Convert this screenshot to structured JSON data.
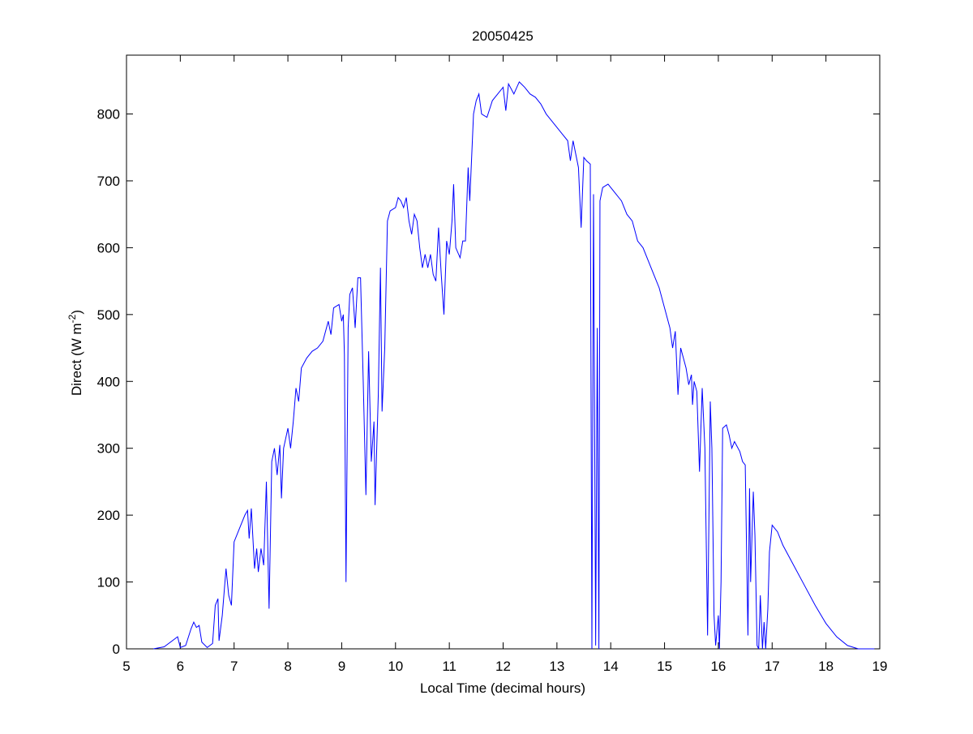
{
  "chart_data": {
    "type": "line",
    "title": "20050425",
    "xlabel": "Local Time (decimal hours)",
    "ylabel": {
      "text": "Direct (W m",
      "superscript": "-2",
      "suffix": ")"
    },
    "xlim": [
      5,
      19
    ],
    "xticks": [
      5,
      6,
      7,
      8,
      9,
      10,
      11,
      12,
      13,
      14,
      15,
      16,
      17,
      18,
      19
    ],
    "ylim": [
      0,
      888
    ],
    "yticks": [
      0,
      100,
      200,
      300,
      400,
      500,
      600,
      700,
      800
    ],
    "x": [
      5.5,
      5.7,
      5.9,
      5.95,
      6.0,
      6.1,
      6.2,
      6.25,
      6.3,
      6.35,
      6.4,
      6.5,
      6.6,
      6.65,
      6.7,
      6.72,
      6.78,
      6.85,
      6.9,
      6.95,
      7.0,
      7.1,
      7.2,
      7.25,
      7.28,
      7.32,
      7.38,
      7.42,
      7.45,
      7.5,
      7.55,
      7.6,
      7.65,
      7.7,
      7.75,
      7.8,
      7.85,
      7.88,
      7.92,
      8.0,
      8.05,
      8.1,
      8.15,
      8.2,
      8.25,
      8.35,
      8.45,
      8.55,
      8.65,
      8.75,
      8.8,
      8.85,
      8.95,
      9.0,
      9.03,
      9.05,
      9.08,
      9.12,
      9.15,
      9.2,
      9.25,
      9.3,
      9.35,
      9.4,
      9.45,
      9.5,
      9.55,
      9.6,
      9.62,
      9.68,
      9.72,
      9.75,
      9.8,
      9.85,
      9.9,
      10.0,
      10.05,
      10.1,
      10.15,
      10.2,
      10.25,
      10.3,
      10.35,
      10.4,
      10.45,
      10.5,
      10.55,
      10.6,
      10.65,
      10.7,
      10.75,
      10.8,
      10.85,
      10.9,
      10.95,
      11.0,
      11.05,
      11.08,
      11.12,
      11.2,
      11.25,
      11.3,
      11.35,
      11.38,
      11.45,
      11.5,
      11.55,
      11.6,
      11.7,
      11.8,
      11.9,
      12.0,
      12.05,
      12.1,
      12.2,
      12.3,
      12.4,
      12.5,
      12.6,
      12.7,
      12.8,
      12.9,
      13.0,
      13.1,
      13.2,
      13.25,
      13.3,
      13.4,
      13.45,
      13.5,
      13.55,
      13.62,
      13.65,
      13.68,
      13.72,
      13.75,
      13.78,
      13.8,
      13.85,
      13.95,
      14.1,
      14.2,
      14.3,
      14.4,
      14.5,
      14.6,
      14.7,
      14.8,
      14.9,
      15.0,
      15.1,
      15.15,
      15.2,
      15.25,
      15.3,
      15.4,
      15.45,
      15.5,
      15.52,
      15.55,
      15.6,
      15.65,
      15.7,
      15.75,
      15.8,
      15.85,
      15.88,
      15.92,
      15.95,
      16.0,
      16.02,
      16.05,
      16.08,
      16.15,
      16.2,
      16.25,
      16.3,
      16.4,
      16.45,
      16.5,
      16.55,
      16.58,
      16.6,
      16.65,
      16.68,
      16.72,
      16.75,
      16.78,
      16.82,
      16.85,
      16.88,
      16.92,
      16.95,
      17.0,
      17.1,
      17.2,
      17.4,
      17.6,
      17.8,
      18.0,
      18.2,
      18.4,
      18.6,
      18.9
    ],
    "series": [
      {
        "color": "#0000ff",
        "values": [
          0,
          3,
          15,
          18,
          2,
          5,
          30,
          40,
          32,
          35,
          10,
          2,
          8,
          65,
          75,
          12,
          50,
          120,
          80,
          65,
          160,
          180,
          200,
          207,
          165,
          210,
          120,
          150,
          115,
          150,
          125,
          250,
          60,
          280,
          300,
          260,
          305,
          225,
          300,
          330,
          300,
          340,
          390,
          370,
          420,
          435,
          445,
          450,
          460,
          490,
          470,
          510,
          515,
          490,
          500,
          440,
          100,
          480,
          530,
          540,
          480,
          555,
          555,
          400,
          230,
          445,
          280,
          340,
          215,
          380,
          570,
          355,
          450,
          640,
          655,
          660,
          675,
          670,
          660,
          675,
          640,
          620,
          650,
          640,
          600,
          570,
          590,
          570,
          590,
          560,
          550,
          630,
          560,
          500,
          610,
          590,
          640,
          695,
          600,
          585,
          610,
          610,
          720,
          670,
          800,
          820,
          830,
          800,
          795,
          820,
          830,
          840,
          805,
          845,
          830,
          848,
          840,
          830,
          825,
          815,
          800,
          790,
          780,
          770,
          760,
          730,
          760,
          720,
          630,
          735,
          730,
          725,
          0,
          680,
          5,
          480,
          0,
          670,
          690,
          695,
          680,
          670,
          650,
          640,
          610,
          600,
          580,
          560,
          540,
          510,
          480,
          450,
          475,
          380,
          450,
          420,
          395,
          410,
          365,
          400,
          385,
          265,
          390,
          300,
          20,
          370,
          300,
          50,
          5,
          50,
          0,
          100,
          330,
          335,
          320,
          300,
          310,
          295,
          280,
          275,
          20,
          240,
          100,
          235,
          170,
          5,
          0,
          80,
          0,
          40,
          0,
          60,
          145,
          185,
          175,
          155,
          125,
          95,
          65,
          38,
          18,
          5,
          0,
          0
        ]
      }
    ]
  }
}
